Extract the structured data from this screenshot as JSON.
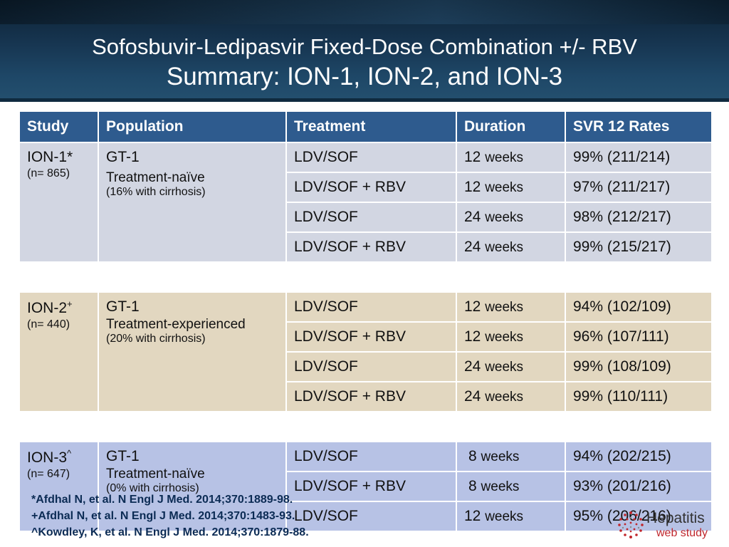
{
  "header": {
    "title_line1": "Sofosbuvir-Ledipasvir Fixed-Dose Combination +/- RBV",
    "title_line2": "Summary: ION-1, ION-2, and ION-3"
  },
  "table": {
    "columns": [
      "Study",
      "Population",
      "Treatment",
      "Duration",
      "SVR 12 Rates"
    ],
    "groups": [
      {
        "study": "ION-1*",
        "n": "(n= 865)",
        "genotype": "GT-1",
        "population": "Treatment-naïve",
        "cirrhosis": "(16% with cirrhosis)",
        "rows": [
          {
            "treatment": "LDV/SOF",
            "duration_num": "12",
            "duration_unit": "weeks",
            "svr": "99% (211/214)"
          },
          {
            "treatment": "LDV/SOF + RBV",
            "duration_num": "12",
            "duration_unit": "weeks",
            "svr": "97% (211/217)"
          },
          {
            "treatment": "LDV/SOF",
            "duration_num": "24",
            "duration_unit": "weeks",
            "svr": "98% (212/217)"
          },
          {
            "treatment": "LDV/SOF + RBV",
            "duration_num": "24",
            "duration_unit": "weeks",
            "svr": "99% (215/217)"
          }
        ]
      },
      {
        "study": "ION-2",
        "study_mark": "+",
        "n": "(n= 440)",
        "genotype": "GT-1",
        "population": "Treatment-experienced",
        "cirrhosis": "(20% with cirrhosis)",
        "rows": [
          {
            "treatment": "LDV/SOF",
            "duration_num": "12",
            "duration_unit": "weeks",
            "svr": "94% (102/109)"
          },
          {
            "treatment": "LDV/SOF + RBV",
            "duration_num": "12",
            "duration_unit": "weeks",
            "svr": "96% (107/111)"
          },
          {
            "treatment": "LDV/SOF",
            "duration_num": "24",
            "duration_unit": "weeks",
            "svr": "99% (108/109)"
          },
          {
            "treatment": "LDV/SOF + RBV",
            "duration_num": "24",
            "duration_unit": "weeks",
            "svr": "99% (110/111)"
          }
        ]
      },
      {
        "study": "ION-3",
        "study_mark": "^",
        "n": "(n= 647)",
        "genotype": "GT-1",
        "population": "Treatment-naïve",
        "cirrhosis": "(0% with cirrhosis)",
        "rows": [
          {
            "treatment": "LDV/SOF",
            "duration_num": "8",
            "duration_unit": "weeks",
            "svr": "94% (202/215)"
          },
          {
            "treatment": "LDV/SOF + RBV",
            "duration_num": "8",
            "duration_unit": "weeks",
            "svr": "93% (201/216)"
          },
          {
            "treatment": "LDV/SOF",
            "duration_num": "12",
            "duration_unit": "weeks",
            "svr": "95% (206/216)"
          }
        ]
      }
    ]
  },
  "references": [
    "*Afdhal N, et al. N Engl J Med. 2014;370:1889-98.",
    "+Afdhal N, et al. N Engl J Med. 2014;370:1483-93.",
    "^Kowdley, K, et al. N Engl J Med. 2014;370:1879-88."
  ],
  "logo": {
    "line1": "Hepatitis",
    "line2": "web study"
  },
  "colors": {
    "header_dark": "#0d2234",
    "table_header": "#2e5b8e",
    "ion1_rows": "#d2d6e2",
    "ion2_rows": "#e2d7c0",
    "ion3_rows": "#b7c2e5",
    "reference_text": "#0b2b54",
    "logo_red": "#c0272d"
  }
}
